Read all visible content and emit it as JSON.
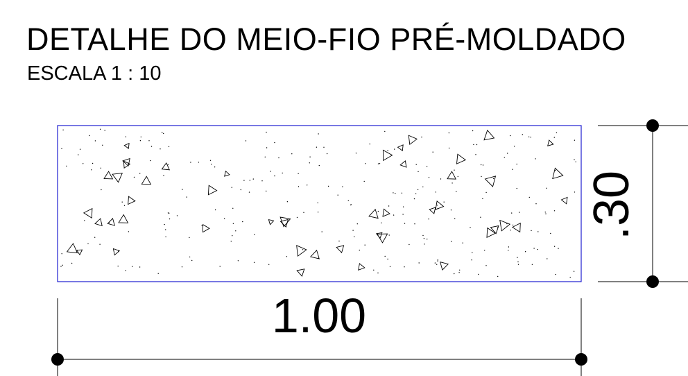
{
  "title": "DETALHE DO MEIO-FIO PRÉ-MOLDADO",
  "subtitle": "ESCALA  1 : 10",
  "dimensions": {
    "width": "1.00",
    "height": ".30"
  },
  "colors": {
    "outline": "#1f1fd0",
    "lines": "#000000",
    "background": "#ffffff"
  }
}
